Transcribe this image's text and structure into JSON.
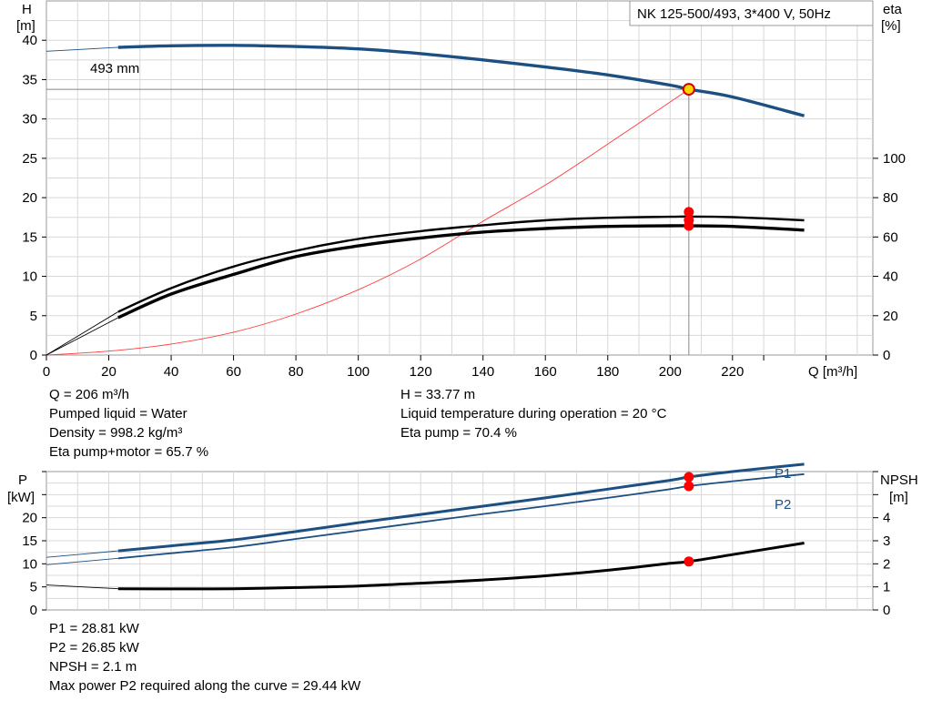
{
  "title_box": "NK 125-500/493, 3*400 V, 50Hz",
  "chart_data": [
    {
      "type": "line",
      "xlabel": "Q [m³/h]",
      "xlim": [
        0,
        265
      ],
      "x_ticks": [
        "0",
        "20",
        "40",
        "60",
        "80",
        "100",
        "120",
        "140",
        "160",
        "180",
        "200",
        "220"
      ],
      "y_left_label": [
        "H",
        "[m]"
      ],
      "y_left_lim": [
        0,
        45
      ],
      "y_left_ticks": [
        "0",
        "5",
        "10",
        "15",
        "20",
        "25",
        "30",
        "35",
        "40"
      ],
      "y_right_label": [
        "eta",
        "[%]"
      ],
      "y_right_lim": [
        0,
        180
      ],
      "y_right_ticks": [
        "0",
        "20",
        "40",
        "60",
        "80",
        "100"
      ],
      "grid": true,
      "curve_label": "493 mm",
      "series": [
        {
          "axis": "left",
          "role": "head",
          "x": [
            0,
            23,
            40,
            60,
            80,
            100,
            120,
            140,
            160,
            180,
            200,
            206,
            220,
            243
          ],
          "y": [
            38.6,
            39.1,
            39.3,
            39.35,
            39.2,
            38.9,
            38.3,
            37.5,
            36.6,
            35.6,
            34.3,
            33.77,
            32.8,
            30.4
          ]
        },
        {
          "axis": "right",
          "role": "eta pump",
          "x": [
            0,
            23,
            40,
            60,
            80,
            100,
            120,
            140,
            160,
            180,
            200,
            206,
            220,
            243
          ],
          "y": [
            0,
            22,
            34,
            45,
            53,
            59,
            63,
            66,
            68.5,
            69.8,
            70.3,
            70.4,
            70.1,
            68.5
          ]
        },
        {
          "axis": "right",
          "role": "eta pump+motor",
          "x": [
            0,
            23,
            40,
            60,
            80,
            100,
            120,
            140,
            160,
            180,
            200,
            206,
            220,
            243
          ],
          "y": [
            0,
            19,
            31,
            41,
            50,
            55.5,
            59.5,
            62.5,
            64.3,
            65.4,
            65.7,
            65.7,
            65.4,
            63.5
          ]
        },
        {
          "axis": "left",
          "role": "system curve",
          "x": [
            0,
            20,
            40,
            60,
            80,
            100,
            120,
            140,
            160,
            180,
            206
          ],
          "y": [
            0,
            0.5,
            1.4,
            2.9,
            5.2,
            8.3,
            12.2,
            17.0,
            21.6,
            26.8,
            33.77
          ]
        }
      ],
      "duty_point": {
        "q": 206,
        "h": 33.77,
        "eta_pump": 70.4,
        "eta_total": 65.7
      }
    },
    {
      "type": "line",
      "xlim": [
        0,
        265
      ],
      "y_left_label": [
        "P",
        "[kW]"
      ],
      "y_left_lim": [
        0,
        30
      ],
      "y_left_ticks": [
        "0",
        "5",
        "10",
        "15",
        "20"
      ],
      "y_right_label": [
        "NPSH",
        "[m]"
      ],
      "y_right_lim": [
        0,
        6
      ],
      "y_right_ticks": [
        "0",
        "1",
        "2",
        "3",
        "4"
      ],
      "grid": true,
      "series": [
        {
          "name": "P1",
          "axis": "left",
          "x": [
            0,
            23,
            40,
            60,
            80,
            100,
            120,
            140,
            160,
            180,
            200,
            206,
            220,
            243
          ],
          "y": [
            11.4,
            12.8,
            13.9,
            15.2,
            17.0,
            18.9,
            20.7,
            22.5,
            24.3,
            26.2,
            28.1,
            28.81,
            30.0,
            31.6
          ]
        },
        {
          "name": "P2",
          "axis": "left",
          "x": [
            0,
            23,
            40,
            60,
            80,
            100,
            120,
            140,
            160,
            180,
            200,
            206,
            220,
            243
          ],
          "y": [
            9.8,
            11.2,
            12.3,
            13.6,
            15.4,
            17.2,
            19.0,
            20.8,
            22.5,
            24.3,
            26.2,
            26.85,
            27.9,
            29.44
          ]
        },
        {
          "axis": "right",
          "role": "NPSH",
          "x": [
            0,
            23,
            40,
            60,
            80,
            100,
            120,
            140,
            160,
            180,
            200,
            206,
            220,
            243
          ],
          "y": [
            1.08,
            0.92,
            0.91,
            0.92,
            0.97,
            1.04,
            1.16,
            1.3,
            1.48,
            1.72,
            2.02,
            2.1,
            2.4,
            2.9
          ]
        }
      ],
      "duty_point": {
        "q": 206,
        "p1": 28.81,
        "p2": 26.85,
        "npsh": 2.1
      }
    }
  ],
  "info_top_left": [
    "Q = 206 m³/h",
    "Pumped liquid = Water",
    "Density = 998.2 kg/m³",
    "Eta pump+motor = 65.7 %"
  ],
  "info_top_right": [
    "H = 33.77 m",
    "Liquid temperature during operation = 20 °C",
    "Eta pump = 70.4 %"
  ],
  "info_bottom": [
    "P1 = 28.81 kW",
    "P2 = 26.85 kW",
    "NPSH = 2.1 m",
    "Max power P2 required along the curve = 29.44 kW"
  ],
  "colors": {
    "head": "#1c4f82",
    "power": "#1c4f82",
    "eta": "#000000",
    "system": "#ff3b3b",
    "duty_marker": "#ff0000",
    "duty_point_fill": "#ffd700",
    "grid": "#d8d8d8"
  }
}
